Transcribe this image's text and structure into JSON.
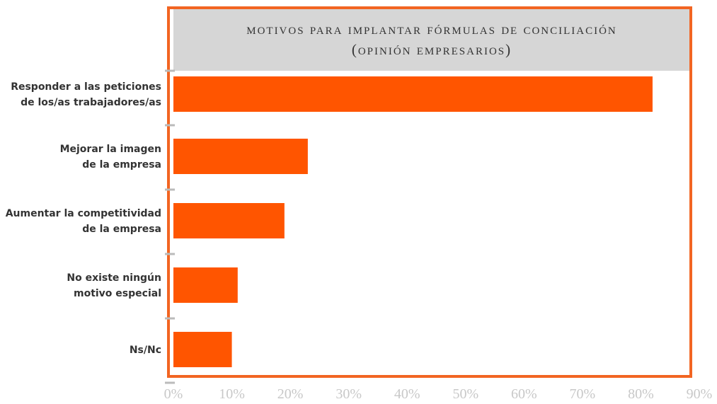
{
  "chart_data": {
    "type": "hbar",
    "title": [
      "motivos para implantar fórmulas de conciliación",
      "(opinión empresarios)"
    ],
    "categories": [
      [
        "Responder a las peticiones",
        "de los/as trabajadores/as"
      ],
      [
        "Mejorar la imagen",
        "de la empresa"
      ],
      [
        "Aumentar la competitividad",
        "de la empresa"
      ],
      [
        "No existe ningún",
        "motivo especial"
      ],
      [
        "Ns/Nc"
      ]
    ],
    "values": [
      82,
      23,
      19,
      11,
      10
    ],
    "color": "#ff5500",
    "xlim": [
      0,
      90
    ],
    "xticks": [
      {
        "value": 0,
        "label": "0%"
      },
      {
        "value": 10,
        "label": "10%"
      },
      {
        "value": 20,
        "label": "20%"
      },
      {
        "value": 30,
        "label": "30%"
      },
      {
        "value": 40,
        "label": "40%"
      },
      {
        "value": 50,
        "label": "50%"
      },
      {
        "value": 60,
        "label": "60%"
      },
      {
        "value": 70,
        "label": "70%"
      },
      {
        "value": 80,
        "label": "80%"
      },
      {
        "value": 90,
        "label": "90%"
      }
    ]
  }
}
